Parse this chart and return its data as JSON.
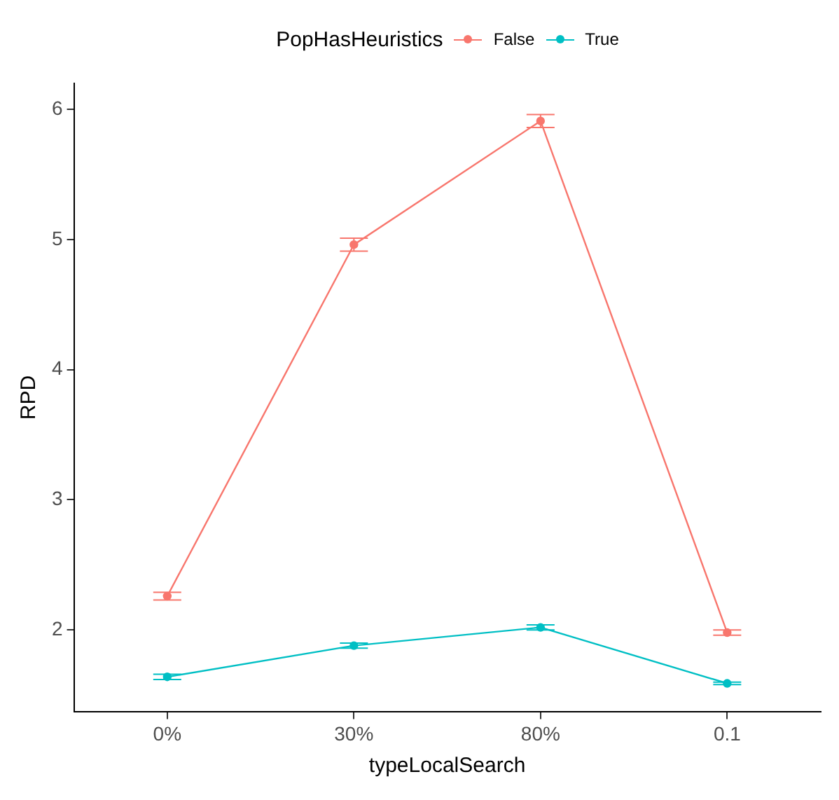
{
  "chart_data": {
    "type": "line",
    "xlabel": "typeLocalSearch",
    "ylabel": "RPD",
    "legend_title": "PopHasHeuristics",
    "categories": [
      "0%",
      "30%",
      "80%",
      "0.1"
    ],
    "series": [
      {
        "name": "False",
        "color": "#f8766d",
        "values": [
          2.26,
          4.96,
          5.91,
          1.98
        ],
        "errors": [
          0.03,
          0.05,
          0.05,
          0.02
        ]
      },
      {
        "name": "True",
        "color": "#00bfc4",
        "values": [
          1.64,
          1.88,
          2.02,
          1.59
        ],
        "errors": [
          0.02,
          0.02,
          0.02,
          0.01
        ]
      }
    ],
    "ylim": [
      1.37,
      6.2
    ],
    "yticks": [
      2,
      3,
      4,
      5,
      6
    ],
    "grid": false,
    "legend": "top",
    "marker": "circle",
    "line_style": "solid"
  }
}
